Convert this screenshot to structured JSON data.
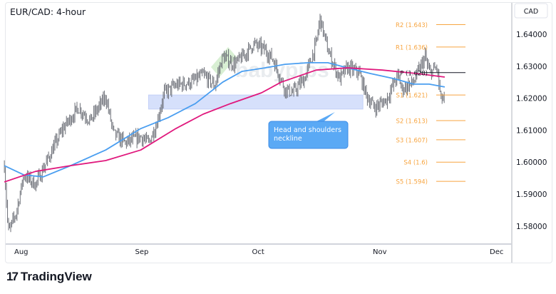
{
  "header": {
    "title": "EUR/CAD: 4-hour"
  },
  "footer": {
    "logo_mark": "17",
    "logo_text": "TradingView"
  },
  "watermark": "babypips",
  "chart_data": {
    "type": "bar",
    "currency_label": "CAD",
    "ylim": [
      1.5755,
      1.6475
    ],
    "y_ticks": [
      {
        "value": 1.64,
        "label": "1.64000"
      },
      {
        "value": 1.63,
        "label": "1.63000"
      },
      {
        "value": 1.62,
        "label": "1.62000"
      },
      {
        "value": 1.61,
        "label": "1.61000"
      },
      {
        "value": 1.6,
        "label": "1.60000"
      },
      {
        "value": 1.59,
        "label": "1.59000"
      },
      {
        "value": 1.58,
        "label": "1.58000"
      }
    ],
    "x_ticks": [
      {
        "date": "2024-08-01",
        "label": "Aug"
      },
      {
        "date": "2024-09-01",
        "label": "Sep"
      },
      {
        "date": "2024-10-01",
        "label": "Oct"
      },
      {
        "date": "2024-11-01",
        "label": "Nov"
      },
      {
        "date": "2024-12-01",
        "label": "Dec"
      }
    ],
    "price": [
      [
        "2024-07-28",
        1.5989
      ],
      [
        "2024-07-29",
        1.578
      ],
      [
        "2024-07-31",
        1.584
      ],
      [
        "2024-08-02",
        1.596
      ],
      [
        "2024-08-05",
        1.593
      ],
      [
        "2024-08-09",
        1.603
      ],
      [
        "2024-08-12",
        1.6105
      ],
      [
        "2024-08-16",
        1.617
      ],
      [
        "2024-08-19",
        1.613
      ],
      [
        "2024-08-23",
        1.6205
      ],
      [
        "2024-08-25",
        1.609
      ],
      [
        "2024-08-28",
        1.606
      ],
      [
        "2024-09-01",
        1.608
      ],
      [
        "2024-09-03",
        1.606
      ],
      [
        "2024-09-05",
        1.6117
      ],
      [
        "2024-09-07",
        1.6217
      ],
      [
        "2024-09-10",
        1.624
      ],
      [
        "2024-09-14",
        1.625
      ],
      [
        "2024-09-17",
        1.6273
      ],
      [
        "2024-09-20",
        1.624
      ],
      [
        "2024-09-22",
        1.633
      ],
      [
        "2024-09-25",
        1.6306
      ],
      [
        "2024-09-28",
        1.634
      ],
      [
        "2024-09-30",
        1.637
      ],
      [
        "2024-10-03",
        1.635
      ],
      [
        "2024-10-05",
        1.632
      ],
      [
        "2024-10-08",
        1.6228
      ],
      [
        "2024-10-10",
        1.6217
      ],
      [
        "2024-10-13",
        1.626
      ],
      [
        "2024-10-16",
        1.637
      ],
      [
        "2024-10-17",
        1.645
      ],
      [
        "2024-10-19",
        1.635
      ],
      [
        "2024-10-22",
        1.626
      ],
      [
        "2024-10-24",
        1.6295
      ],
      [
        "2024-10-27",
        1.628
      ],
      [
        "2024-10-29",
        1.6206
      ],
      [
        "2024-10-31",
        1.617
      ],
      [
        "2024-11-03",
        1.6195
      ],
      [
        "2024-11-06",
        1.6273
      ],
      [
        "2024-11-07",
        1.6228
      ],
      [
        "2024-11-10",
        1.625
      ],
      [
        "2024-11-13",
        1.633
      ],
      [
        "2024-11-14",
        1.628
      ],
      [
        "2024-11-16",
        1.6295
      ],
      [
        "2024-11-17",
        1.6195
      ],
      [
        "2024-11-18",
        1.62
      ]
    ],
    "series": [
      {
        "color": "#4a9ef0",
        "values": [
          [
            "2024-07-28",
            1.5989
          ],
          [
            "2024-08-02",
            1.596
          ],
          [
            "2024-08-07",
            1.5954
          ],
          [
            "2024-08-14",
            1.5989
          ],
          [
            "2024-08-23",
            1.6038
          ],
          [
            "2024-09-01",
            1.6105
          ],
          [
            "2024-09-08",
            1.6139
          ],
          [
            "2024-09-15",
            1.6183
          ],
          [
            "2024-09-22",
            1.625
          ],
          [
            "2024-09-27",
            1.6284
          ],
          [
            "2024-10-03",
            1.6295
          ],
          [
            "2024-10-08",
            1.6306
          ],
          [
            "2024-10-14",
            1.6311
          ],
          [
            "2024-10-19",
            1.6311
          ],
          [
            "2024-10-24",
            1.6295
          ],
          [
            "2024-10-30",
            1.6277
          ],
          [
            "2024-11-05",
            1.6261
          ],
          [
            "2024-11-10",
            1.6244
          ],
          [
            "2024-11-14",
            1.6244
          ],
          [
            "2024-11-18",
            1.6235
          ]
        ]
      },
      {
        "color": "#e0197d",
        "values": [
          [
            "2024-07-28",
            1.5938
          ],
          [
            "2024-08-05",
            1.5971
          ],
          [
            "2024-08-14",
            1.5989
          ],
          [
            "2024-08-23",
            1.6005
          ],
          [
            "2024-09-01",
            1.6038
          ],
          [
            "2024-09-10",
            1.6105
          ],
          [
            "2024-09-17",
            1.615
          ],
          [
            "2024-09-24",
            1.6183
          ],
          [
            "2024-10-02",
            1.6217
          ],
          [
            "2024-10-07",
            1.625
          ],
          [
            "2024-10-16",
            1.6288
          ],
          [
            "2024-10-24",
            1.6295
          ],
          [
            "2024-11-02",
            1.6288
          ],
          [
            "2024-11-11",
            1.6277
          ],
          [
            "2024-11-18",
            1.6266
          ]
        ]
      }
    ],
    "pivots": [
      {
        "label": "R2 (1.643)",
        "value": 1.643
      },
      {
        "label": "R1 (1.636)",
        "value": 1.636
      },
      {
        "label": "P (1.628)",
        "value": 1.628,
        "color": "#131722"
      },
      {
        "label": "S1 (1.621)",
        "value": 1.621
      },
      {
        "label": "S2 (1.613)",
        "value": 1.613
      },
      {
        "label": "S3 (1.607)",
        "value": 1.607
      },
      {
        "label": "S4 (1.6)",
        "value": 1.6
      },
      {
        "label": "S5 (1.594)",
        "value": 1.594
      }
    ],
    "pivot_color": "#f7a541",
    "zone": {
      "from": "2024-09-03",
      "to": "2024-10-28",
      "low": 1.6166,
      "high": 1.621,
      "color": "#d6e0fb"
    },
    "annotation": {
      "lines": [
        "Head and shoulders",
        "neckline"
      ],
      "color": "#5aa9f5"
    }
  }
}
